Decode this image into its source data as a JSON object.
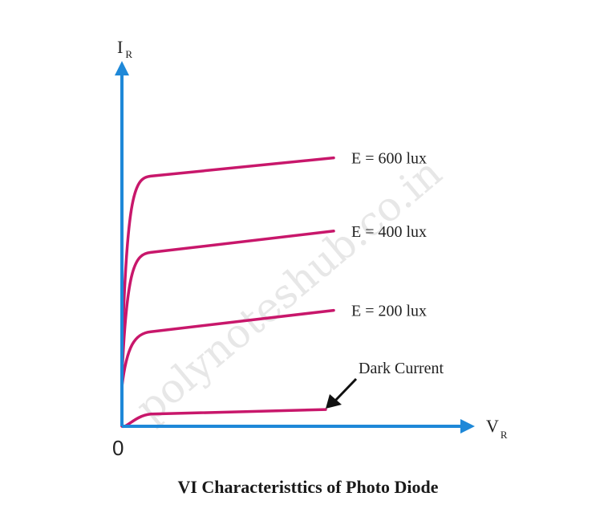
{
  "chart_data": {
    "type": "line",
    "title": "VI Characteristtics of Photo Diode",
    "y_axis": {
      "symbol": "I",
      "subscript": "R"
    },
    "x_axis": {
      "symbol": "V",
      "subscript": "R"
    },
    "origin_label": "0",
    "grid": false,
    "series": [
      {
        "name": "E = 600 lux",
        "color": "#c8176b",
        "knee": 0.22,
        "plateau": 0.82,
        "end": 0.88
      },
      {
        "name": "E = 400 lux",
        "color": "#c8176b",
        "knee": 0.16,
        "plateau": 0.57,
        "end": 0.64
      },
      {
        "name": "E = 200 lux",
        "color": "#c8176b",
        "knee": 0.13,
        "plateau": 0.31,
        "end": 0.38
      },
      {
        "name": "Dark Current",
        "color": "#c8176b",
        "knee": 0.0,
        "plateau": 0.04,
        "end": 0.055
      }
    ],
    "annotation": {
      "text": "Dark Current"
    },
    "axis_color": "#1e88d8",
    "watermark": "polynoteshub.co.in"
  }
}
